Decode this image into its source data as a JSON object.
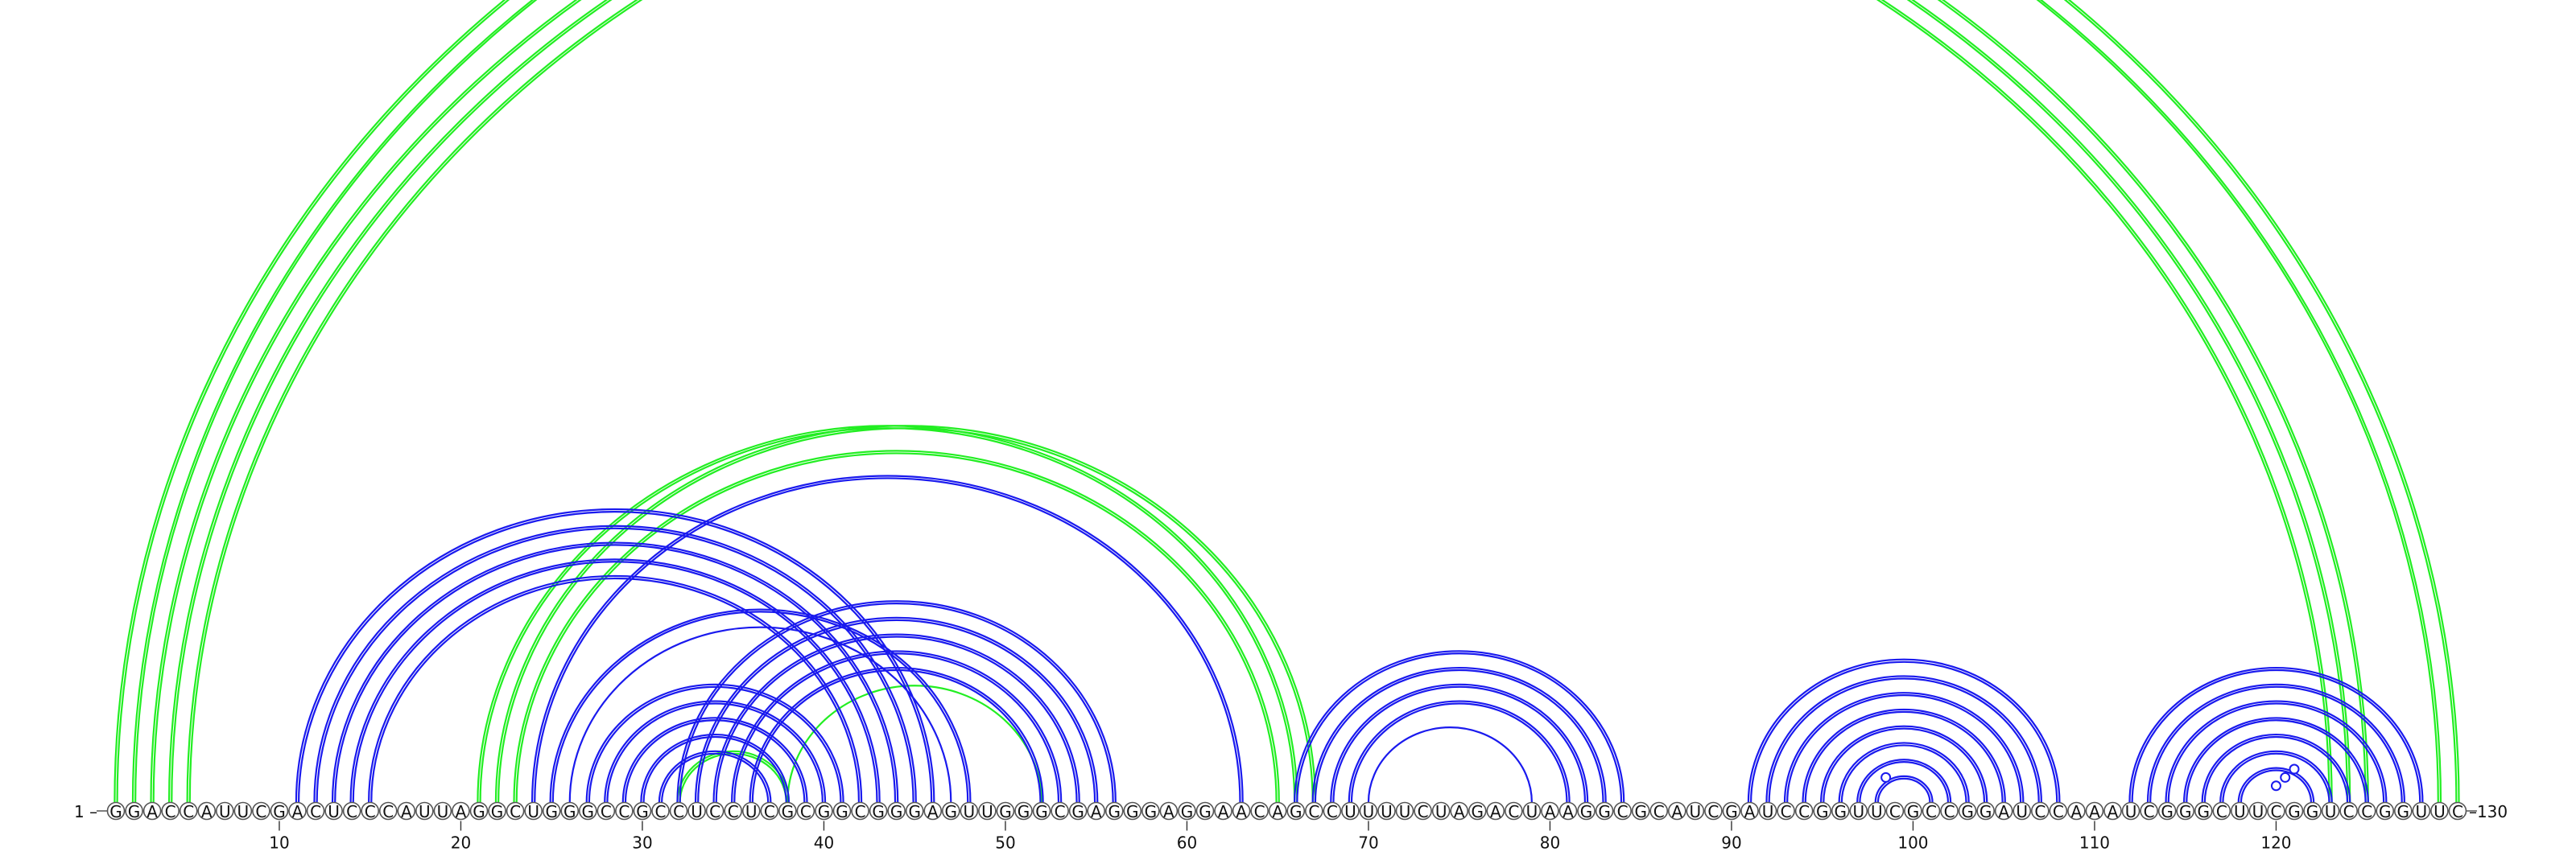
{
  "sequence": "GGACCAUUCGACUCCCAUUAGGCUGGGCCGCCUCCUCGCGGCGGGAGUUGGGCGAGGGAGGAACAGCCUUUUCUAGACUAAGGCGCAUCGAUCCGGUUCGCCGGAUCCAAAUCGGGCUUCGGUCCGGUUC",
  "start_label": "1 –",
  "end_label": "–130",
  "ticks": [
    10,
    20,
    30,
    40,
    50,
    60,
    70,
    80,
    90,
    100,
    110,
    120
  ],
  "colors": {
    "green": "#22ee22",
    "blue": "#1a1aee"
  },
  "pseudo_knot_markers": [
    {
      "i": 1,
      "j": 130,
      "color": "green"
    },
    {
      "i": 97,
      "j": 100,
      "color": "blue"
    },
    {
      "i": 119,
      "j": 121,
      "color": "blue"
    },
    {
      "i": 119,
      "j": 122,
      "color": "blue"
    },
    {
      "i": 119,
      "j": 123,
      "color": "blue"
    }
  ],
  "arcs": [
    {
      "i": 1,
      "j": 130,
      "color": "green",
      "double": true
    },
    {
      "i": 2,
      "j": 129,
      "color": "green",
      "double": true
    },
    {
      "i": 3,
      "j": 125,
      "color": "green",
      "double": true
    },
    {
      "i": 4,
      "j": 124,
      "color": "green",
      "double": true
    },
    {
      "i": 5,
      "j": 123,
      "color": "green",
      "double": true
    },
    {
      "i": 21,
      "j": 66,
      "color": "green",
      "double": true
    },
    {
      "i": 22,
      "j": 67,
      "color": "green",
      "double": true
    },
    {
      "i": 23,
      "j": 65,
      "color": "green",
      "double": true
    },
    {
      "i": 32,
      "j": 38,
      "color": "green",
      "double": true
    },
    {
      "i": 38,
      "j": 52,
      "color": "green",
      "double": false
    },
    {
      "i": 11,
      "j": 46,
      "color": "blue",
      "double": true
    },
    {
      "i": 12,
      "j": 45,
      "color": "blue",
      "double": true
    },
    {
      "i": 13,
      "j": 44,
      "color": "blue",
      "double": true
    },
    {
      "i": 14,
      "j": 43,
      "color": "blue",
      "double": true
    },
    {
      "i": 15,
      "j": 42,
      "color": "blue",
      "double": true
    },
    {
      "i": 24,
      "j": 63,
      "color": "blue",
      "double": true
    },
    {
      "i": 25,
      "j": 48,
      "color": "blue",
      "double": true
    },
    {
      "i": 26,
      "j": 47,
      "color": "blue",
      "double": false
    },
    {
      "i": 27,
      "j": 41,
      "color": "blue",
      "double": true
    },
    {
      "i": 28,
      "j": 40,
      "color": "blue",
      "double": true
    },
    {
      "i": 29,
      "j": 39,
      "color": "blue",
      "double": true
    },
    {
      "i": 30,
      "j": 38,
      "color": "blue",
      "double": true
    },
    {
      "i": 31,
      "j": 37,
      "color": "blue",
      "double": true
    },
    {
      "i": 32,
      "j": 56,
      "color": "blue",
      "double": true
    },
    {
      "i": 33,
      "j": 55,
      "color": "blue",
      "double": true
    },
    {
      "i": 34,
      "j": 54,
      "color": "blue",
      "double": true
    },
    {
      "i": 35,
      "j": 53,
      "color": "blue",
      "double": true
    },
    {
      "i": 36,
      "j": 52,
      "color": "blue",
      "double": true
    },
    {
      "i": 66,
      "j": 84,
      "color": "blue",
      "double": true
    },
    {
      "i": 67,
      "j": 83,
      "color": "blue",
      "double": true
    },
    {
      "i": 68,
      "j": 82,
      "color": "blue",
      "double": true
    },
    {
      "i": 69,
      "j": 81,
      "color": "blue",
      "double": true
    },
    {
      "i": 70,
      "j": 79,
      "color": "blue",
      "double": false
    },
    {
      "i": 91,
      "j": 108,
      "color": "blue",
      "double": true
    },
    {
      "i": 92,
      "j": 107,
      "color": "blue",
      "double": true
    },
    {
      "i": 93,
      "j": 106,
      "color": "blue",
      "double": true
    },
    {
      "i": 94,
      "j": 105,
      "color": "blue",
      "double": true
    },
    {
      "i": 95,
      "j": 104,
      "color": "blue",
      "double": true
    },
    {
      "i": 96,
      "j": 103,
      "color": "blue",
      "double": true
    },
    {
      "i": 97,
      "j": 102,
      "color": "blue",
      "double": true
    },
    {
      "i": 98,
      "j": 101,
      "color": "blue",
      "double": true
    },
    {
      "i": 112,
      "j": 128,
      "color": "blue",
      "double": true
    },
    {
      "i": 113,
      "j": 127,
      "color": "blue",
      "double": true
    },
    {
      "i": 114,
      "j": 126,
      "color": "blue",
      "double": true
    },
    {
      "i": 115,
      "j": 125,
      "color": "blue",
      "double": true
    },
    {
      "i": 116,
      "j": 124,
      "color": "blue",
      "double": true
    },
    {
      "i": 117,
      "j": 123,
      "color": "blue",
      "double": true
    },
    {
      "i": 118,
      "j": 122,
      "color": "blue",
      "double": true
    }
  ]
}
